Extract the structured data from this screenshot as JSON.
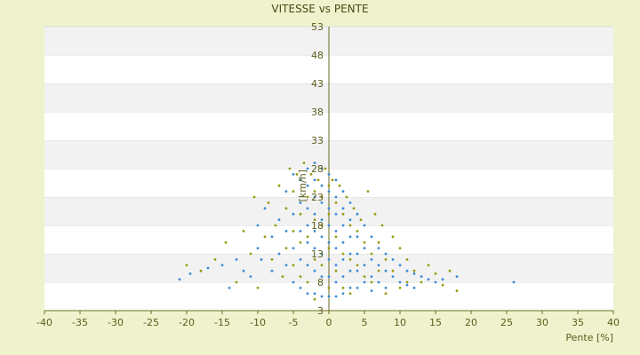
{
  "chart_data": {
    "type": "scatter",
    "title": "VITESSE vs PENTE",
    "xlabel": "Pente [%]",
    "ylabel": "[km/h]",
    "xlim": [
      -40,
      40
    ],
    "ylim": [
      3,
      53
    ],
    "xticks": [
      -40,
      -35,
      -30,
      -25,
      -20,
      -15,
      -10,
      -5,
      0,
      5,
      10,
      15,
      20,
      25,
      30,
      35,
      40
    ],
    "yticks": [
      3,
      8,
      13,
      18,
      23,
      28,
      33,
      38,
      43,
      48,
      53
    ],
    "grid": "horizontal alternating bands",
    "series": [
      {
        "color": "#3a8ad6",
        "points": [
          [
            -21,
            8.5
          ],
          [
            -19.5,
            9.5
          ],
          [
            -17,
            10.5
          ],
          [
            -15,
            11
          ],
          [
            -14,
            7
          ],
          [
            -13,
            12
          ],
          [
            -12,
            10
          ],
          [
            -11,
            9
          ],
          [
            -10,
            14
          ],
          [
            -10,
            18
          ],
          [
            -9.5,
            12
          ],
          [
            -9,
            21
          ],
          [
            -8,
            16
          ],
          [
            -8,
            10
          ],
          [
            -7,
            19
          ],
          [
            -7,
            13
          ],
          [
            -6,
            24
          ],
          [
            -6,
            17
          ],
          [
            -6,
            11
          ],
          [
            -5,
            27
          ],
          [
            -5,
            20
          ],
          [
            -5,
            14
          ],
          [
            -5,
            8
          ],
          [
            -4,
            26
          ],
          [
            -4,
            22
          ],
          [
            -4,
            17
          ],
          [
            -4,
            12
          ],
          [
            -4,
            7
          ],
          [
            -3,
            28
          ],
          [
            -3,
            25
          ],
          [
            -3,
            21
          ],
          [
            -3,
            18
          ],
          [
            -3,
            15
          ],
          [
            -3,
            11
          ],
          [
            -3,
            6
          ],
          [
            -2,
            29
          ],
          [
            -2,
            26
          ],
          [
            -2,
            23
          ],
          [
            -2,
            20
          ],
          [
            -2,
            17
          ],
          [
            -2,
            14
          ],
          [
            -2,
            10
          ],
          [
            -2,
            6
          ],
          [
            -1,
            28
          ],
          [
            -1,
            25
          ],
          [
            -1,
            22
          ],
          [
            -1,
            19
          ],
          [
            -1,
            16
          ],
          [
            -1,
            13
          ],
          [
            -1,
            9
          ],
          [
            -1,
            5.5
          ],
          [
            0,
            27
          ],
          [
            0,
            24
          ],
          [
            0,
            21
          ],
          [
            0,
            18
          ],
          [
            0,
            15
          ],
          [
            0,
            12
          ],
          [
            0,
            9
          ],
          [
            0,
            5.5
          ],
          [
            1,
            26
          ],
          [
            1,
            23
          ],
          [
            1,
            20
          ],
          [
            1,
            17
          ],
          [
            1,
            14
          ],
          [
            1,
            11
          ],
          [
            1,
            8
          ],
          [
            1,
            5.5
          ],
          [
            2,
            24
          ],
          [
            2,
            21
          ],
          [
            2,
            18
          ],
          [
            2,
            15
          ],
          [
            2,
            12
          ],
          [
            2,
            9
          ],
          [
            2,
            6
          ],
          [
            3,
            22
          ],
          [
            3,
            19
          ],
          [
            3,
            16
          ],
          [
            3,
            13
          ],
          [
            3,
            10
          ],
          [
            3,
            7
          ],
          [
            4,
            20
          ],
          [
            4,
            16
          ],
          [
            4,
            13
          ],
          [
            4,
            10
          ],
          [
            4,
            7
          ],
          [
            5,
            18
          ],
          [
            5,
            14
          ],
          [
            5,
            11
          ],
          [
            5,
            8
          ],
          [
            6,
            16
          ],
          [
            6,
            12
          ],
          [
            6,
            9
          ],
          [
            6,
            6.5
          ],
          [
            7,
            14
          ],
          [
            7,
            11
          ],
          [
            7,
            8
          ],
          [
            8,
            13
          ],
          [
            8,
            10
          ],
          [
            8,
            7
          ],
          [
            9,
            12
          ],
          [
            9,
            9
          ],
          [
            10,
            11
          ],
          [
            10,
            8
          ],
          [
            11,
            10
          ],
          [
            11,
            7.5
          ],
          [
            12,
            9.5
          ],
          [
            12,
            7
          ],
          [
            13,
            9
          ],
          [
            14,
            8.5
          ],
          [
            15,
            8
          ],
          [
            16,
            8.5
          ],
          [
            18,
            9
          ],
          [
            26,
            8
          ]
        ]
      },
      {
        "color": "#9a9a10",
        "points": [
          [
            -20,
            11
          ],
          [
            -18,
            10
          ],
          [
            -16,
            12
          ],
          [
            -14.5,
            15
          ],
          [
            -13,
            8
          ],
          [
            -12,
            17
          ],
          [
            -11,
            13
          ],
          [
            -10.5,
            23
          ],
          [
            -10,
            7
          ],
          [
            -9,
            16
          ],
          [
            -8.5,
            22
          ],
          [
            -8,
            12
          ],
          [
            -7.5,
            18
          ],
          [
            -7,
            25
          ],
          [
            -6.5,
            9
          ],
          [
            -6,
            21
          ],
          [
            -6,
            14
          ],
          [
            -5.5,
            28
          ],
          [
            -5,
            24
          ],
          [
            -5,
            17
          ],
          [
            -5,
            11
          ],
          [
            -4.5,
            27
          ],
          [
            -4,
            20
          ],
          [
            -4,
            15
          ],
          [
            -4,
            9
          ],
          [
            -3.5,
            29
          ],
          [
            -3,
            23
          ],
          [
            -3,
            16
          ],
          [
            -3,
            8
          ],
          [
            -2.5,
            27
          ],
          [
            -2,
            24
          ],
          [
            -2,
            19
          ],
          [
            -2,
            12
          ],
          [
            -2,
            5
          ],
          [
            -1.5,
            26
          ],
          [
            -1,
            23
          ],
          [
            -1,
            18
          ],
          [
            -1,
            11
          ],
          [
            -0.5,
            28
          ],
          [
            0,
            25
          ],
          [
            0,
            20
          ],
          [
            0,
            14
          ],
          [
            0,
            7
          ],
          [
            0.5,
            26
          ],
          [
            1,
            22
          ],
          [
            1,
            16
          ],
          [
            1,
            10
          ],
          [
            1.5,
            25
          ],
          [
            2,
            20
          ],
          [
            2,
            13
          ],
          [
            2,
            7
          ],
          [
            2.5,
            23
          ],
          [
            3,
            18
          ],
          [
            3,
            12
          ],
          [
            3,
            6
          ],
          [
            3.5,
            21
          ],
          [
            4,
            17
          ],
          [
            4,
            11
          ],
          [
            4.5,
            19
          ],
          [
            5,
            15
          ],
          [
            5,
            9
          ],
          [
            5.5,
            24
          ],
          [
            6,
            13
          ],
          [
            6,
            8
          ],
          [
            6.5,
            20
          ],
          [
            7,
            15
          ],
          [
            7,
            10
          ],
          [
            7.5,
            18
          ],
          [
            8,
            12
          ],
          [
            8,
            6
          ],
          [
            9,
            16
          ],
          [
            9,
            10
          ],
          [
            10,
            14
          ],
          [
            10,
            7
          ],
          [
            11,
            12
          ],
          [
            11,
            8
          ],
          [
            12,
            10
          ],
          [
            13,
            8
          ],
          [
            14,
            11
          ],
          [
            15,
            9.5
          ],
          [
            16,
            7.5
          ],
          [
            17,
            10
          ],
          [
            18,
            6.5
          ]
        ]
      }
    ]
  }
}
